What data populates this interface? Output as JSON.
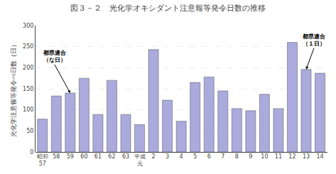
{
  "chart_data": {
    "type": "bar",
    "title": "図３－２　光化学オキシダント注意報等発令日数の推移",
    "ylabel": "光化学注意報等発令べ日数（日）",
    "categories": [
      "昭和\n57",
      "58",
      "59",
      "60",
      "61",
      "62",
      "63",
      "平成\n元",
      "2",
      "3",
      "4",
      "5",
      "6",
      "7",
      "8",
      "9",
      "10",
      "11",
      "12",
      "13",
      "14"
    ],
    "values": [
      78,
      133,
      140,
      175,
      89,
      170,
      89,
      65,
      243,
      123,
      73,
      165,
      178,
      145,
      103,
      98,
      137,
      103,
      260,
      196,
      187
    ],
    "color": "#aaaadd",
    "ylim": [
      0,
      300
    ],
    "yticks": [
      0,
      50,
      100,
      150,
      200,
      250,
      300
    ],
    "grid": true,
    "annotations": [
      {
        "text": "都県連合\n（な日）",
        "category": "59"
      },
      {
        "text": "都県連合\n（１日）",
        "category": "13"
      }
    ]
  }
}
